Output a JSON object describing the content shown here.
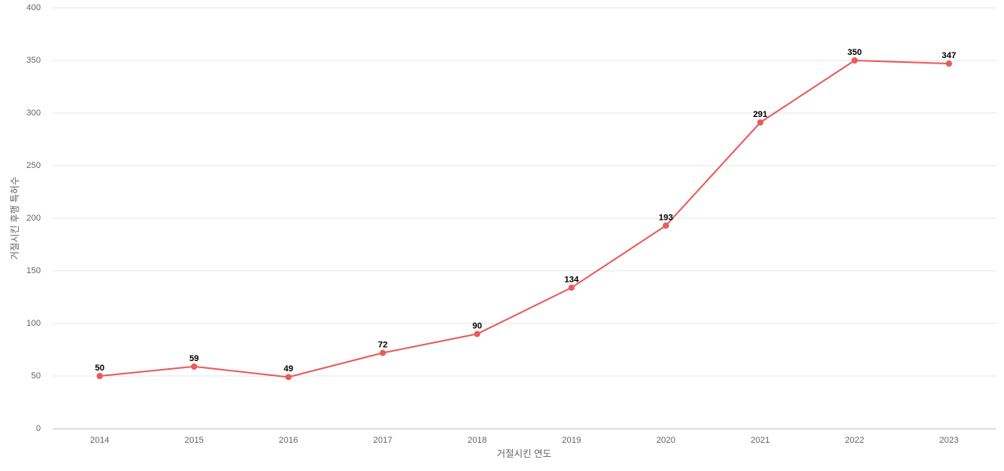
{
  "chart_data": {
    "type": "line",
    "x_label": "거절시킨 연도",
    "y_label": "거절시킨 후행 특허수",
    "categories": [
      "2014",
      "2015",
      "2016",
      "2017",
      "2018",
      "2019",
      "2020",
      "2021",
      "2022",
      "2023"
    ],
    "values": [
      50,
      59,
      49,
      72,
      90,
      134,
      193,
      291,
      350,
      347
    ],
    "color": "#e85c5c",
    "ylim": [
      0,
      400
    ],
    "yticks": [
      0,
      50,
      100,
      150,
      200,
      250,
      300,
      350,
      400
    ],
    "grid": true
  }
}
